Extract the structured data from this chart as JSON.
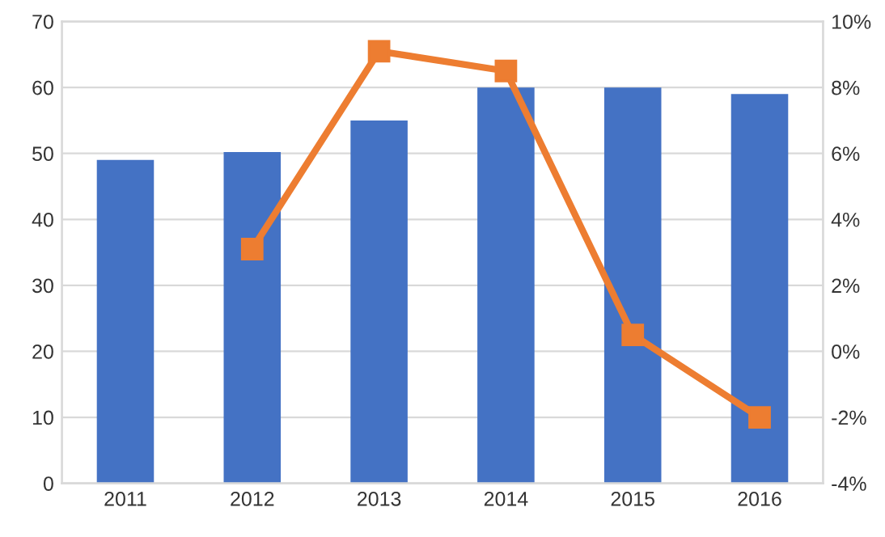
{
  "chart_data": {
    "type": "bar",
    "categories": [
      "2011",
      "2012",
      "2013",
      "2014",
      "2015",
      "2016"
    ],
    "series": [
      {
        "color": "#4472c4",
        "values": [
          49,
          50.2,
          55,
          60,
          60,
          59
        ]
      },
      {
        "type": "line",
        "axis": "y2",
        "color": "#ed7d31",
        "marker": "square",
        "values": [
          null,
          3.1,
          9.1,
          8.5,
          0.5,
          -2.0
        ]
      }
    ],
    "ylim": [
      0,
      70
    ],
    "yticks": [
      0,
      10,
      20,
      30,
      40,
      50,
      60,
      70
    ],
    "y2lim": [
      -4,
      10
    ],
    "y2ticks": [
      {
        "value": -4,
        "label": "-4%"
      },
      {
        "value": -2,
        "label": "-2%"
      },
      {
        "value": 0,
        "label": "0%"
      },
      {
        "value": 2,
        "label": "2%"
      },
      {
        "value": 4,
        "label": "4%"
      },
      {
        "value": 6,
        "label": "6%"
      },
      {
        "value": 8,
        "label": "8%"
      },
      {
        "value": 10,
        "label": "10%"
      }
    ],
    "grid": "y",
    "legend": false
  }
}
